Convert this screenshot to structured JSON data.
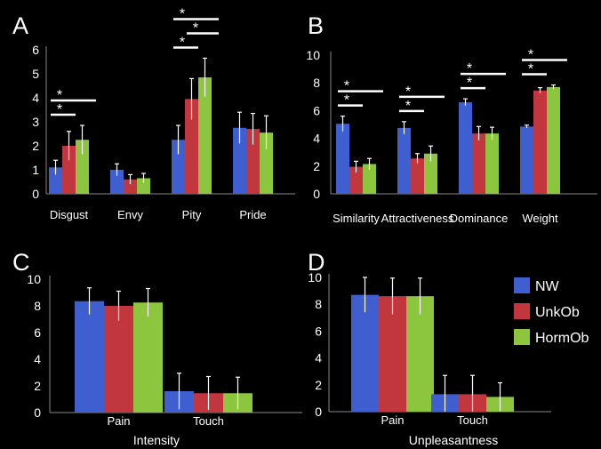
{
  "series_colors": {
    "NW": "#3f5fd0",
    "UnkOb": "#c2373d",
    "HormOb": "#8cc63f"
  },
  "chart_data": [
    {
      "panel": "A",
      "type": "bar",
      "categories": [
        "Disgust",
        "Envy",
        "Pity",
        "Pride"
      ],
      "series": [
        {
          "name": "NW",
          "values": [
            1.1,
            1.0,
            2.25,
            2.75
          ],
          "errors": [
            0.3,
            0.25,
            0.6,
            0.65
          ]
        },
        {
          "name": "UnkOb",
          "values": [
            2.0,
            0.6,
            3.95,
            2.7
          ],
          "errors": [
            0.6,
            0.2,
            0.85,
            0.65
          ]
        },
        {
          "name": "HormOb",
          "values": [
            2.25,
            0.65,
            4.85,
            2.55
          ],
          "errors": [
            0.6,
            0.2,
            0.8,
            0.7
          ]
        }
      ],
      "ylim": [
        0,
        6
      ],
      "yticks": [
        "0",
        "1",
        "2",
        "3",
        "4",
        "5",
        "6"
      ],
      "xlabel": "",
      "ylabel": "",
      "significance": [
        {
          "from": "NW",
          "to": "HormOb",
          "category": "Disgust",
          "label": "*"
        },
        {
          "from": "NW",
          "to": "UnkOb",
          "category": "Disgust",
          "label": "*"
        },
        {
          "from": "NW",
          "to": "UnkOb",
          "category": "Pity",
          "label": "*"
        },
        {
          "from": "UnkOb",
          "to": "HormOb",
          "category": "Pity",
          "label": "*"
        },
        {
          "from": "NW",
          "to": "HormOb",
          "category": "Pity",
          "label": "*"
        }
      ]
    },
    {
      "panel": "B",
      "type": "bar",
      "categories": [
        "Similarity",
        "Attractiveness",
        "Dominance",
        "Weight"
      ],
      "series": [
        {
          "name": "NW",
          "values": [
            5.05,
            4.75,
            6.6,
            4.85
          ],
          "errors": [
            0.55,
            0.45,
            0.25,
            0.1
          ]
        },
        {
          "name": "UnkOb",
          "values": [
            1.95,
            2.55,
            4.35,
            7.45
          ],
          "errors": [
            0.4,
            0.35,
            0.5,
            0.2
          ]
        },
        {
          "name": "HormOb",
          "values": [
            2.15,
            2.9,
            4.35,
            7.7
          ],
          "errors": [
            0.4,
            0.55,
            0.45,
            0.15
          ]
        }
      ],
      "ylim": [
        0,
        10
      ],
      "yticks": [
        "0",
        "2",
        "4",
        "6",
        "8",
        "10"
      ],
      "xlabel": "",
      "ylabel": "",
      "significance": [
        {
          "from": "NW",
          "to": "HormOb",
          "category": "Similarity",
          "label": "*"
        },
        {
          "from": "NW",
          "to": "UnkOb",
          "category": "Similarity",
          "label": "*"
        },
        {
          "from": "NW",
          "to": "HormOb",
          "category": "Attractiveness",
          "label": "*"
        },
        {
          "from": "NW",
          "to": "UnkOb",
          "category": "Attractiveness",
          "label": "*"
        },
        {
          "from": "NW",
          "to": "HormOb",
          "category": "Dominance",
          "label": "*"
        },
        {
          "from": "NW",
          "to": "UnkOb",
          "category": "Dominance",
          "label": "*"
        },
        {
          "from": "NW",
          "to": "HormOb",
          "category": "Weight",
          "label": "*"
        },
        {
          "from": "NW",
          "to": "UnkOb",
          "category": "Weight",
          "label": "*"
        }
      ]
    },
    {
      "panel": "C",
      "type": "bar",
      "categories": [
        "Pain",
        "Touch"
      ],
      "series": [
        {
          "name": "NW",
          "values": [
            8.35,
            1.6
          ],
          "errors": [
            1.0,
            1.35
          ]
        },
        {
          "name": "UnkOb",
          "values": [
            8.0,
            1.45
          ],
          "errors": [
            1.1,
            1.25
          ]
        },
        {
          "name": "HormOb",
          "values": [
            8.25,
            1.45
          ],
          "errors": [
            1.05,
            1.2
          ]
        }
      ],
      "ylim": [
        0,
        10
      ],
      "yticks": [
        "0",
        "2",
        "4",
        "6",
        "8",
        "10"
      ],
      "xlabel": "Intensity",
      "ylabel": "",
      "significance": []
    },
    {
      "panel": "D",
      "type": "bar",
      "categories": [
        "Pain",
        "Touch"
      ],
      "series": [
        {
          "name": "NW",
          "values": [
            8.7,
            1.3
          ],
          "errors": [
            1.3,
            1.4
          ]
        },
        {
          "name": "UnkOb",
          "values": [
            8.6,
            1.3
          ],
          "errors": [
            1.35,
            1.4
          ]
        },
        {
          "name": "HormOb",
          "values": [
            8.6,
            1.1
          ],
          "errors": [
            1.35,
            1.05
          ]
        }
      ],
      "ylim": [
        0,
        10
      ],
      "yticks": [
        "0",
        "2",
        "4",
        "6",
        "8",
        "10"
      ],
      "xlabel": "Unpleasantness",
      "ylabel": "",
      "legend": [
        "NW",
        "UnkOb",
        "HormOb"
      ],
      "legend_position": "top-right",
      "significance": []
    }
  ]
}
